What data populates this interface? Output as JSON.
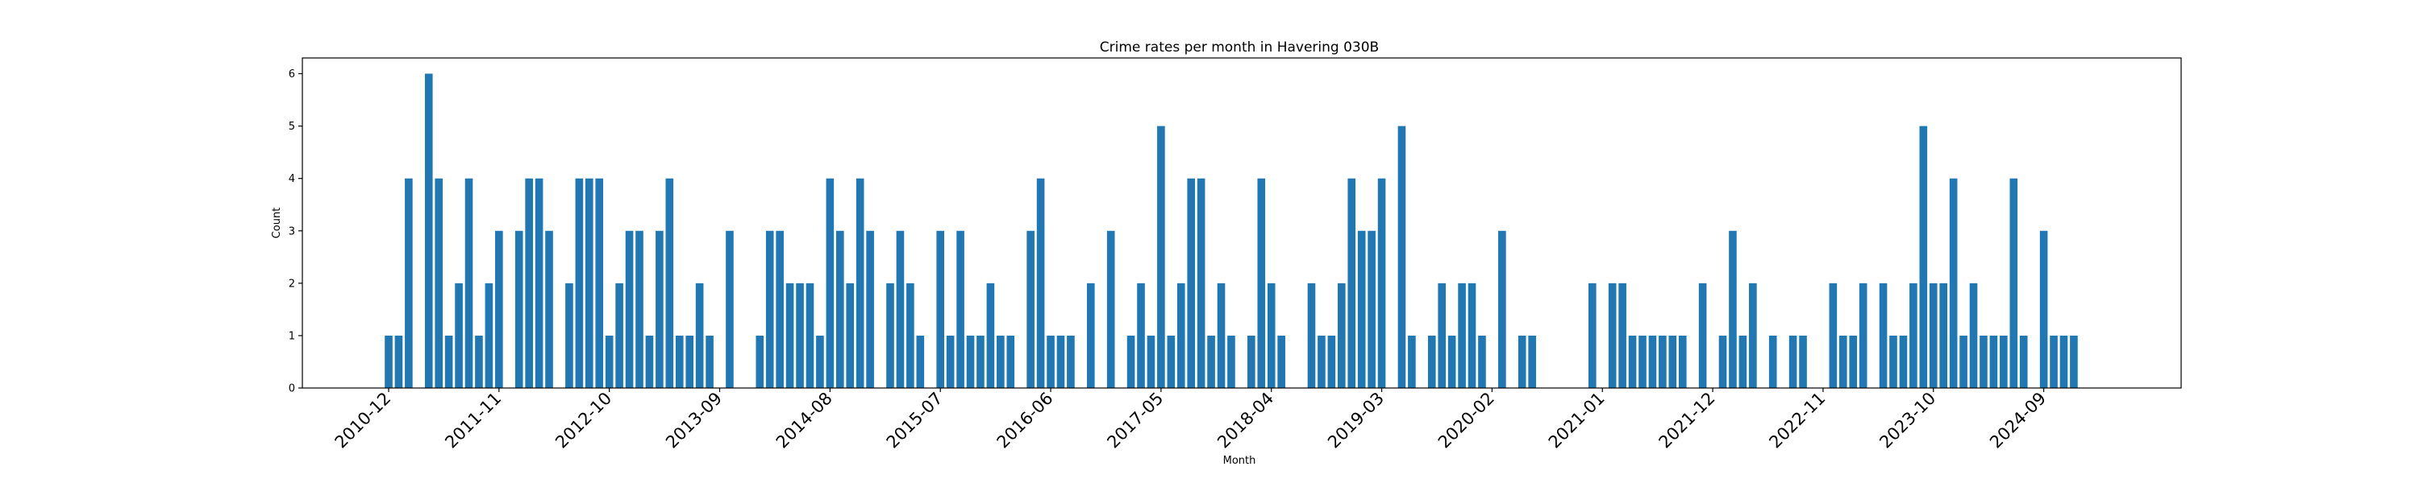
{
  "chart_data": {
    "type": "bar",
    "title": "Crime rates per month in Havering 030B",
    "xlabel": "Month",
    "ylabel": "Count",
    "ylim": [
      0,
      6.3
    ],
    "yticks": [
      0,
      1,
      2,
      3,
      4,
      5,
      6
    ],
    "xtick_labels": [
      "2010-12",
      "2011-11",
      "2012-10",
      "2013-09",
      "2014-08",
      "2015-07",
      "2016-06",
      "2017-05",
      "2018-04",
      "2019-03",
      "2020-02",
      "2021-01",
      "2021-12",
      "2022-11",
      "2023-10",
      "2024-09"
    ],
    "grid": false,
    "bar_color": "#1f77b4",
    "data": [
      {
        "x": "2010-12",
        "y": 1
      },
      {
        "x": "2011-01",
        "y": 1
      },
      {
        "x": "2011-02",
        "y": 4
      },
      {
        "x": "2011-04",
        "y": 6
      },
      {
        "x": "2011-05",
        "y": 4
      },
      {
        "x": "2011-06",
        "y": 1
      },
      {
        "x": "2011-07",
        "y": 2
      },
      {
        "x": "2011-08",
        "y": 4
      },
      {
        "x": "2011-09",
        "y": 1
      },
      {
        "x": "2011-10",
        "y": 2
      },
      {
        "x": "2011-11",
        "y": 3
      },
      {
        "x": "2012-01",
        "y": 3
      },
      {
        "x": "2012-02",
        "y": 4
      },
      {
        "x": "2012-03",
        "y": 4
      },
      {
        "x": "2012-04",
        "y": 3
      },
      {
        "x": "2012-06",
        "y": 2
      },
      {
        "x": "2012-07",
        "y": 4
      },
      {
        "x": "2012-08",
        "y": 4
      },
      {
        "x": "2012-09",
        "y": 4
      },
      {
        "x": "2012-10",
        "y": 1
      },
      {
        "x": "2012-11",
        "y": 2
      },
      {
        "x": "2012-12",
        "y": 3
      },
      {
        "x": "2013-01",
        "y": 3
      },
      {
        "x": "2013-02",
        "y": 1
      },
      {
        "x": "2013-03",
        "y": 3
      },
      {
        "x": "2013-04",
        "y": 4
      },
      {
        "x": "2013-05",
        "y": 1
      },
      {
        "x": "2013-06",
        "y": 1
      },
      {
        "x": "2013-07",
        "y": 2
      },
      {
        "x": "2013-08",
        "y": 1
      },
      {
        "x": "2013-10",
        "y": 3
      },
      {
        "x": "2014-01",
        "y": 1
      },
      {
        "x": "2014-02",
        "y": 3
      },
      {
        "x": "2014-03",
        "y": 3
      },
      {
        "x": "2014-04",
        "y": 2
      },
      {
        "x": "2014-05",
        "y": 2
      },
      {
        "x": "2014-06",
        "y": 2
      },
      {
        "x": "2014-07",
        "y": 1
      },
      {
        "x": "2014-08",
        "y": 4
      },
      {
        "x": "2014-09",
        "y": 3
      },
      {
        "x": "2014-10",
        "y": 2
      },
      {
        "x": "2014-11",
        "y": 4
      },
      {
        "x": "2014-12",
        "y": 3
      },
      {
        "x": "2015-02",
        "y": 2
      },
      {
        "x": "2015-03",
        "y": 3
      },
      {
        "x": "2015-04",
        "y": 2
      },
      {
        "x": "2015-05",
        "y": 1
      },
      {
        "x": "2015-07",
        "y": 3
      },
      {
        "x": "2015-08",
        "y": 1
      },
      {
        "x": "2015-09",
        "y": 3
      },
      {
        "x": "2015-10",
        "y": 1
      },
      {
        "x": "2015-11",
        "y": 1
      },
      {
        "x": "2015-12",
        "y": 2
      },
      {
        "x": "2016-01",
        "y": 1
      },
      {
        "x": "2016-02",
        "y": 1
      },
      {
        "x": "2016-04",
        "y": 3
      },
      {
        "x": "2016-05",
        "y": 4
      },
      {
        "x": "2016-06",
        "y": 1
      },
      {
        "x": "2016-07",
        "y": 1
      },
      {
        "x": "2016-08",
        "y": 1
      },
      {
        "x": "2016-10",
        "y": 2
      },
      {
        "x": "2016-12",
        "y": 3
      },
      {
        "x": "2017-02",
        "y": 1
      },
      {
        "x": "2017-03",
        "y": 2
      },
      {
        "x": "2017-04",
        "y": 1
      },
      {
        "x": "2017-05",
        "y": 5
      },
      {
        "x": "2017-06",
        "y": 1
      },
      {
        "x": "2017-07",
        "y": 2
      },
      {
        "x": "2017-08",
        "y": 4
      },
      {
        "x": "2017-09",
        "y": 4
      },
      {
        "x": "2017-10",
        "y": 1
      },
      {
        "x": "2017-11",
        "y": 2
      },
      {
        "x": "2017-12",
        "y": 1
      },
      {
        "x": "2018-02",
        "y": 1
      },
      {
        "x": "2018-03",
        "y": 4
      },
      {
        "x": "2018-04",
        "y": 2
      },
      {
        "x": "2018-05",
        "y": 1
      },
      {
        "x": "2018-08",
        "y": 2
      },
      {
        "x": "2018-09",
        "y": 1
      },
      {
        "x": "2018-10",
        "y": 1
      },
      {
        "x": "2018-11",
        "y": 2
      },
      {
        "x": "2018-12",
        "y": 4
      },
      {
        "x": "2019-01",
        "y": 3
      },
      {
        "x": "2019-02",
        "y": 3
      },
      {
        "x": "2019-03",
        "y": 4
      },
      {
        "x": "2019-05",
        "y": 5
      },
      {
        "x": "2019-06",
        "y": 1
      },
      {
        "x": "2019-08",
        "y": 1
      },
      {
        "x": "2019-09",
        "y": 2
      },
      {
        "x": "2019-10",
        "y": 1
      },
      {
        "x": "2019-11",
        "y": 2
      },
      {
        "x": "2019-12",
        "y": 2
      },
      {
        "x": "2020-01",
        "y": 1
      },
      {
        "x": "2020-03",
        "y": 3
      },
      {
        "x": "2020-05",
        "y": 1
      },
      {
        "x": "2020-06",
        "y": 1
      },
      {
        "x": "2020-12",
        "y": 2
      },
      {
        "x": "2021-02",
        "y": 2
      },
      {
        "x": "2021-03",
        "y": 2
      },
      {
        "x": "2021-04",
        "y": 1
      },
      {
        "x": "2021-05",
        "y": 1
      },
      {
        "x": "2021-06",
        "y": 1
      },
      {
        "x": "2021-07",
        "y": 1
      },
      {
        "x": "2021-08",
        "y": 1
      },
      {
        "x": "2021-09",
        "y": 1
      },
      {
        "x": "2021-11",
        "y": 2
      },
      {
        "x": "2022-01",
        "y": 1
      },
      {
        "x": "2022-02",
        "y": 3
      },
      {
        "x": "2022-03",
        "y": 1
      },
      {
        "x": "2022-04",
        "y": 2
      },
      {
        "x": "2022-06",
        "y": 1
      },
      {
        "x": "2022-08",
        "y": 1
      },
      {
        "x": "2022-09",
        "y": 1
      },
      {
        "x": "2022-12",
        "y": 2
      },
      {
        "x": "2023-01",
        "y": 1
      },
      {
        "x": "2023-02",
        "y": 1
      },
      {
        "x": "2023-03",
        "y": 2
      },
      {
        "x": "2023-05",
        "y": 2
      },
      {
        "x": "2023-06",
        "y": 1
      },
      {
        "x": "2023-07",
        "y": 1
      },
      {
        "x": "2023-08",
        "y": 2
      },
      {
        "x": "2023-09",
        "y": 5
      },
      {
        "x": "2023-10",
        "y": 2
      },
      {
        "x": "2023-11",
        "y": 2
      },
      {
        "x": "2023-12",
        "y": 4
      },
      {
        "x": "2024-01",
        "y": 1
      },
      {
        "x": "2024-02",
        "y": 2
      },
      {
        "x": "2024-03",
        "y": 1
      },
      {
        "x": "2024-04",
        "y": 1
      },
      {
        "x": "2024-05",
        "y": 1
      },
      {
        "x": "2024-06",
        "y": 4
      },
      {
        "x": "2024-07",
        "y": 1
      },
      {
        "x": "2024-09",
        "y": 3
      },
      {
        "x": "2024-10",
        "y": 1
      },
      {
        "x": "2024-11",
        "y": 1
      },
      {
        "x": "2024-12",
        "y": 1
      }
    ]
  }
}
